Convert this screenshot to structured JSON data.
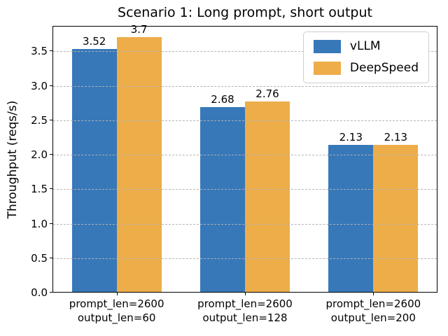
{
  "chart_data": {
    "type": "bar",
    "title": "Scenario 1: Long prompt, short output",
    "ylabel": "Throughput (reqs/s)",
    "xlabel": "",
    "categories": [
      "prompt_len=2600\noutput_len=60",
      "prompt_len=2600\noutput_len=128",
      "prompt_len=2600\noutput_len=200"
    ],
    "series": [
      {
        "name": "vLLM",
        "color": "#3778b9",
        "values": [
          3.52,
          2.68,
          2.13
        ],
        "labels": [
          "3.52",
          "2.68",
          "2.13"
        ]
      },
      {
        "name": "DeepSpeed",
        "color": "#edad49",
        "values": [
          3.7,
          2.76,
          2.13
        ],
        "labels": [
          "3.7",
          "2.76",
          "2.13"
        ]
      }
    ],
    "ytick_labels": [
      "0.0",
      "0.5",
      "1.0",
      "1.5",
      "2.0",
      "2.5",
      "3.0",
      "3.5"
    ],
    "ytick_values": [
      0,
      0.5,
      1,
      1.5,
      2,
      2.5,
      3,
      3.5
    ],
    "ylim": [
      0,
      3.87
    ],
    "grid": {
      "axis": "y",
      "style": "dashed",
      "color": "#b0b0b0",
      "above_bars": true
    },
    "legend": {
      "position": "upper right",
      "entries": [
        "vLLM",
        "DeepSpeed"
      ]
    }
  }
}
